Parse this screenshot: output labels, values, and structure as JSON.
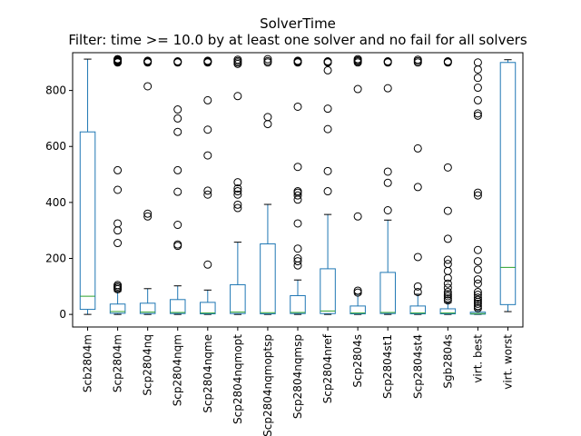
{
  "chart_data": {
    "type": "box",
    "title": "SolverTime",
    "subtitle": "Filter: time >= 10.0 by at least one solver and no fail for all solvers",
    "xlabel": "",
    "ylabel": "",
    "ylim": [
      -45,
      935
    ],
    "yticks": [
      0,
      200,
      400,
      600,
      800
    ],
    "colors": {
      "box": "#1f77b4",
      "median": "#2ca02c",
      "outlier": "#000000"
    },
    "categories": [
      "Scb2804m",
      "Scp2804m",
      "Scp2804nq",
      "Scp2804nqm",
      "Scp2804nqme",
      "Scp2804nqmopt",
      "Scp2804nqmoptsp",
      "Scp2804nqmsp",
      "Scp2804nref",
      "Scp2804s",
      "Scp2804st1",
      "Scp2804st4",
      "Sgb2804s",
      "virt. best",
      "virt. worst"
    ],
    "boxes": [
      {
        "q1": 18,
        "median": 65,
        "q3": 652,
        "whisker_low": 0,
        "whisker_high": 912,
        "outliers": []
      },
      {
        "q1": 4,
        "median": 10,
        "q3": 37,
        "whisker_low": 0,
        "whisker_high": 82,
        "outliers": [
          90,
          95,
          100,
          105,
          255,
          300,
          325,
          445,
          515,
          900,
          902,
          904,
          906,
          908,
          910,
          912
        ]
      },
      {
        "q1": 3,
        "median": 8,
        "q3": 40,
        "whisker_low": 0,
        "whisker_high": 92,
        "outliers": [
          350,
          360,
          815,
          900,
          902,
          904,
          906
        ]
      },
      {
        "q1": 3,
        "median": 7,
        "q3": 53,
        "whisker_low": 0,
        "whisker_high": 102,
        "outliers": [
          245,
          250,
          320,
          438,
          515,
          652,
          700,
          732,
          900,
          902,
          904
        ]
      },
      {
        "q1": 2,
        "median": 5,
        "q3": 43,
        "whisker_low": 0,
        "whisker_high": 87,
        "outliers": [
          178,
          428,
          442,
          568,
          660,
          765,
          900,
          902,
          904,
          906
        ]
      },
      {
        "q1": 3,
        "median": 8,
        "q3": 106,
        "whisker_low": 0,
        "whisker_high": 258,
        "outliers": [
          380,
          392,
          428,
          440,
          450,
          472,
          780,
          895,
          900,
          905,
          910
        ]
      },
      {
        "q1": 2,
        "median": 6,
        "q3": 252,
        "whisker_low": 0,
        "whisker_high": 393,
        "outliers": [
          680,
          705,
          900,
          905,
          912
        ]
      },
      {
        "q1": 3,
        "median": 7,
        "q3": 67,
        "whisker_low": 0,
        "whisker_high": 123,
        "outliers": [
          175,
          190,
          200,
          235,
          325,
          410,
          425,
          435,
          440,
          527,
          742,
          900,
          902,
          904,
          906
        ]
      },
      {
        "q1": 3,
        "median": 12,
        "q3": 163,
        "whisker_low": 0,
        "whisker_high": 357,
        "outliers": [
          440,
          512,
          662,
          735,
          872,
          900,
          902,
          904
        ]
      },
      {
        "q1": 2,
        "median": 5,
        "q3": 30,
        "whisker_low": 0,
        "whisker_high": 72,
        "outliers": [
          78,
          85,
          350,
          805,
          900,
          904,
          908,
          912
        ]
      },
      {
        "q1": 3,
        "median": 7,
        "q3": 150,
        "whisker_low": 0,
        "whisker_high": 337,
        "outliers": [
          372,
          470,
          510,
          808,
          900,
          902,
          904
        ]
      },
      {
        "q1": 2,
        "median": 5,
        "q3": 30,
        "whisker_low": 0,
        "whisker_high": 72,
        "outliers": [
          80,
          100,
          205,
          455,
          593,
          900,
          905,
          910
        ]
      },
      {
        "q1": 2,
        "median": 5,
        "q3": 20,
        "whisker_low": 0,
        "whisker_high": 42,
        "outliers": [
          50,
          57,
          65,
          72,
          80,
          95,
          110,
          130,
          155,
          180,
          195,
          270,
          370,
          525,
          900,
          902,
          904
        ]
      },
      {
        "q1": 1,
        "median": 3,
        "q3": 8,
        "whisker_low": 0,
        "whisker_high": 16,
        "outliers": [
          22,
          30,
          38,
          45,
          52,
          60,
          70,
          80,
          110,
          125,
          160,
          190,
          230,
          425,
          435,
          710,
          718,
          765,
          810,
          845,
          875,
          900
        ]
      },
      {
        "q1": 35,
        "median": 168,
        "q3": 900,
        "whisker_low": 10,
        "whisker_high": 910,
        "outliers": []
      }
    ]
  }
}
